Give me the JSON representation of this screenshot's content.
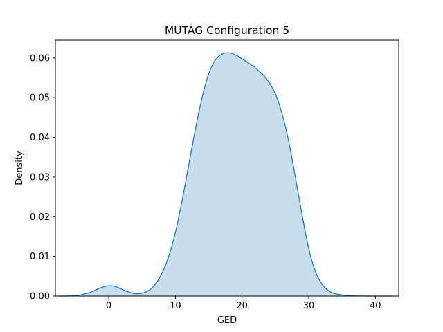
{
  "chart_data": {
    "type": "area",
    "title": "MUTAG Configuration 5",
    "xlabel": "GED",
    "ylabel": "Density",
    "xlim": [
      -8,
      43.5
    ],
    "ylim": [
      0,
      0.0645
    ],
    "xticks": [
      0,
      10,
      20,
      30,
      40
    ],
    "xtick_labels": [
      "0",
      "10",
      "20",
      "30",
      "40"
    ],
    "yticks": [
      0,
      0.01,
      0.02,
      0.03,
      0.04,
      0.05,
      0.06
    ],
    "ytick_labels": [
      "0.00",
      "0.01",
      "0.02",
      "0.03",
      "0.04",
      "0.05",
      "0.06"
    ],
    "grid": false,
    "series": [
      {
        "line_color": "#1f77b4",
        "fill_color": "#1f77b4",
        "fill_opacity": 0.25,
        "x": [
          -7.5,
          -5,
          -3,
          -2,
          -1,
          0,
          1,
          2,
          3,
          4,
          5,
          6,
          7,
          8,
          9,
          10,
          11,
          12,
          13,
          14,
          15,
          16,
          17,
          18,
          19,
          20,
          21,
          22,
          23,
          24,
          25,
          26,
          27,
          28,
          29,
          30,
          31,
          32,
          33,
          34,
          35,
          36,
          37,
          38,
          40,
          42.5
        ],
        "y": [
          0.0,
          0.0001,
          0.0008,
          0.0015,
          0.0022,
          0.0026,
          0.0024,
          0.0017,
          0.001,
          0.0006,
          0.0007,
          0.0014,
          0.003,
          0.0058,
          0.01,
          0.016,
          0.024,
          0.033,
          0.042,
          0.05,
          0.056,
          0.0595,
          0.061,
          0.0613,
          0.0608,
          0.0598,
          0.0587,
          0.0575,
          0.056,
          0.054,
          0.051,
          0.046,
          0.039,
          0.03,
          0.0205,
          0.012,
          0.0062,
          0.003,
          0.0013,
          0.0006,
          0.0003,
          0.0001,
          5e-05,
          2e-05,
          0.0,
          0.0
        ]
      }
    ]
  }
}
